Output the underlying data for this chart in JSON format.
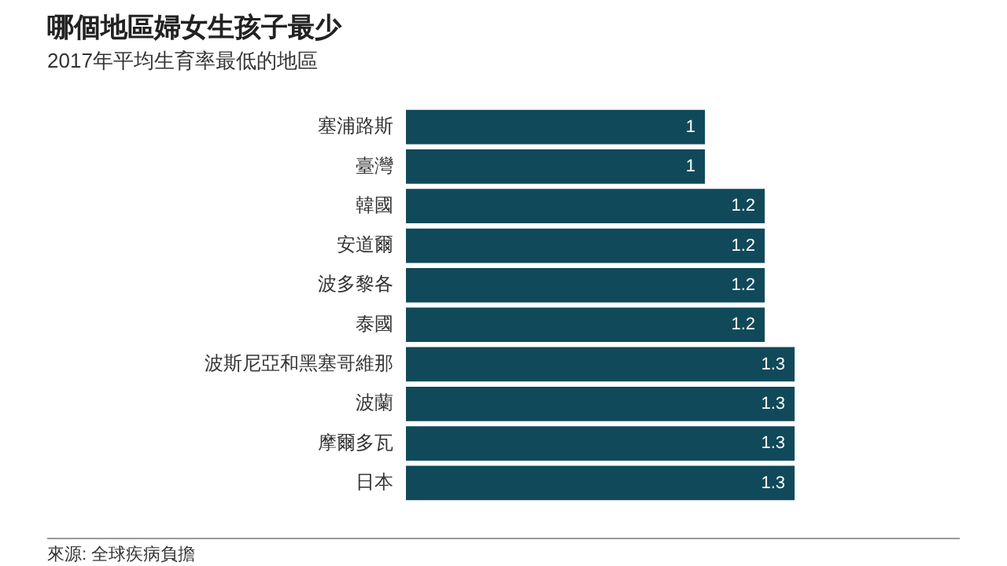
{
  "chart_data": {
    "type": "bar",
    "orientation": "horizontal",
    "title": "哪個地區婦女生孩子最少",
    "subtitle": "2017年平均生育率最低的地區",
    "categories": [
      "塞浦路斯",
      "臺灣",
      "韓國",
      "安道爾",
      "波多黎各",
      "泰國",
      "波斯尼亞和黑塞哥維那",
      "波蘭",
      "摩爾多瓦",
      "日本"
    ],
    "values": [
      1,
      1,
      1.2,
      1.2,
      1.2,
      1.2,
      1.3,
      1.3,
      1.3,
      1.3
    ],
    "color": "#104a5a",
    "data_labels": true,
    "grid": false,
    "legend": false,
    "annotations": [
      "來源: 全球疾病負擔"
    ]
  }
}
